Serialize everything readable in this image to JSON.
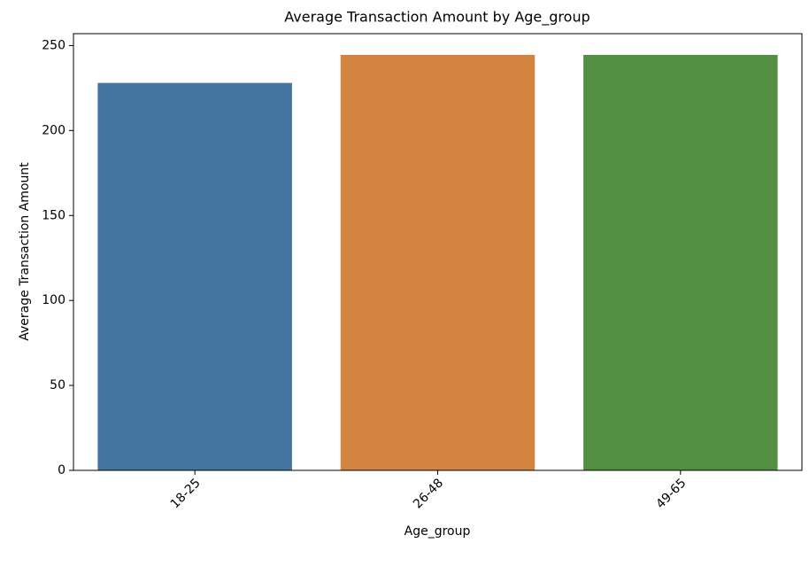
{
  "chart_data": {
    "type": "bar",
    "title": "Average Transaction Amount by Age_group",
    "x_label": "Age_group",
    "y_label": "Average Transaction Amount",
    "categories": [
      "18-25",
      "26-48",
      "49-65"
    ],
    "values": [
      228,
      244.5,
      244.5
    ],
    "colors": [
      "#4474a0",
      "#d3843f",
      "#538f43"
    ],
    "ylim": [
      0,
      257
    ],
    "yticks": [
      0,
      50,
      100,
      150,
      200,
      250
    ],
    "grid": false
  }
}
